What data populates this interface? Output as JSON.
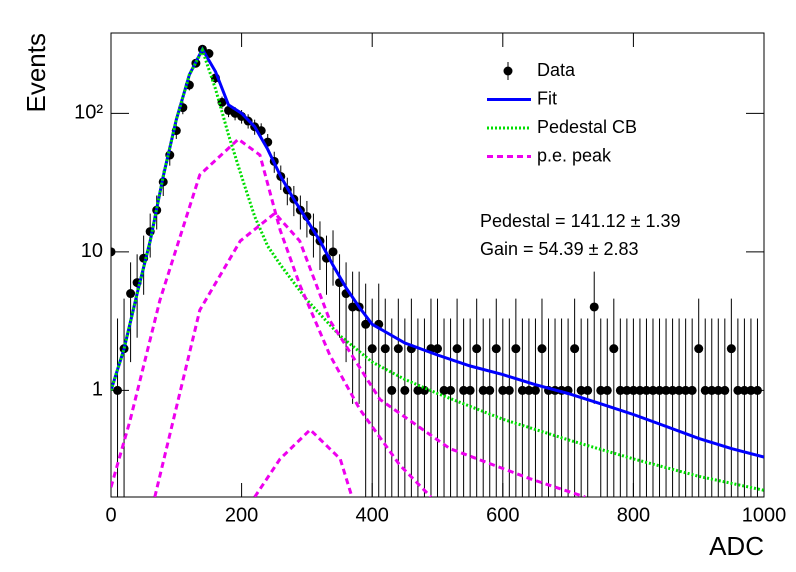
{
  "chart_data": {
    "type": "line",
    "xlabel": "ADC",
    "ylabel": "Events",
    "xlim": [
      0,
      1000
    ],
    "ylim": [
      0.17,
      380
    ],
    "log_y": true,
    "xticks": [
      0,
      200,
      400,
      600,
      800,
      1000
    ],
    "yticks": [
      1,
      10,
      {
        "value": 100,
        "label": "10²"
      }
    ],
    "legend": "upper right",
    "annotations": [
      "Pedestal = 141.12 ± 1.39",
      "Gain = 54.39 ± 2.83"
    ],
    "series": [
      {
        "name": "Data",
        "color": "#000000",
        "style": "points",
        "x": [
          0,
          10,
          20,
          30,
          40,
          50,
          60,
          70,
          80,
          90,
          100,
          110,
          120,
          130,
          140,
          150,
          160,
          170,
          180,
          190,
          200,
          210,
          220,
          230,
          240,
          250,
          260,
          270,
          280,
          290,
          300,
          310,
          320,
          330,
          340,
          350,
          360,
          370,
          380,
          390,
          400,
          410,
          420,
          430,
          440,
          450,
          460,
          470,
          480,
          490,
          500,
          510,
          520,
          530,
          540,
          550,
          560,
          570,
          580,
          590,
          600,
          610,
          620,
          630,
          640,
          650,
          660,
          670,
          680,
          690,
          700,
          710,
          720,
          730,
          740,
          750,
          760,
          770,
          780,
          790,
          800,
          810,
          820,
          830,
          840,
          850,
          860,
          870,
          880,
          890,
          900,
          910,
          920,
          930,
          940,
          950,
          960,
          970,
          980,
          990
        ],
        "values": [
          10,
          1,
          2,
          5,
          6,
          9,
          14,
          20,
          32,
          50,
          75,
          110,
          160,
          230,
          290,
          270,
          180,
          120,
          105,
          100,
          95,
          88,
          80,
          75,
          62,
          45,
          35,
          28,
          24,
          20,
          18,
          14,
          12,
          9,
          10,
          6,
          5,
          4,
          4,
          3,
          2,
          3,
          2,
          1,
          2,
          1,
          2,
          1,
          1,
          2,
          2,
          1,
          1,
          2,
          1,
          1,
          2,
          1,
          1,
          2,
          1,
          1,
          2,
          1,
          1,
          1,
          2,
          1,
          1,
          1,
          1,
          2,
          1,
          1,
          4,
          1,
          1,
          2,
          1,
          1,
          1,
          1,
          1,
          1,
          1,
          1,
          1,
          1,
          1,
          1,
          2,
          1,
          1,
          1,
          1,
          2,
          1,
          1,
          1,
          1
        ],
        "errors": [
          4.3,
          2.3,
          2.6,
          3.4,
          3.6,
          4.1,
          4.9,
          5.5,
          6.7,
          8.1,
          9.7,
          11.5,
          13.6,
          16.2,
          18,
          17.4,
          14.4,
          12,
          11.2,
          11,
          10.7,
          10.4,
          10,
          9.7,
          8.9,
          7.8,
          7,
          6.3,
          5.9,
          5.5,
          5.3,
          4.9,
          4.6,
          4.1,
          4.3,
          3.6,
          3.4,
          3.2,
          3.2,
          2.9,
          2.6,
          2.9,
          2.6,
          2.3,
          2.6,
          2.3,
          2.6,
          2.3,
          2.3,
          2.6,
          2.6,
          2.3,
          2.3,
          2.6,
          2.3,
          2.3,
          2.6,
          2.3,
          2.3,
          2.6,
          2.3,
          2.3,
          2.6,
          2.3,
          2.3,
          2.3,
          2.6,
          2.3,
          2.3,
          2.3,
          2.3,
          2.6,
          2.3,
          2.3,
          3.2,
          2.3,
          2.3,
          2.6,
          2.3,
          2.3,
          2.3,
          2.3,
          2.3,
          2.3,
          2.3,
          2.3,
          2.3,
          2.3,
          2.3,
          2.3,
          2.6,
          2.3,
          2.3,
          2.3,
          2.3,
          2.6,
          2.3,
          2.3,
          2.3,
          2.3
        ]
      },
      {
        "name": "Fit",
        "color": "#0000ff",
        "style": "solid",
        "x": [
          0,
          20,
          40,
          60,
          80,
          100,
          120,
          140,
          160,
          180,
          200,
          220,
          240,
          260,
          280,
          300,
          320,
          340,
          360,
          380,
          400,
          450,
          500,
          550,
          600,
          650,
          700,
          750,
          800,
          850,
          900,
          950,
          1000
        ],
        "values": [
          1,
          2,
          5,
          12,
          35,
          90,
          190,
          290,
          200,
          115,
          100,
          80,
          55,
          35,
          24,
          17,
          12,
          8,
          5.5,
          4,
          3,
          2.2,
          1.8,
          1.5,
          1.3,
          1.1,
          0.95,
          0.8,
          0.67,
          0.55,
          0.45,
          0.38,
          0.33
        ]
      },
      {
        "name": "Pedestal CB",
        "color": "#00dd00",
        "style": "dotted",
        "x": [
          0,
          20,
          40,
          60,
          80,
          100,
          120,
          140,
          160,
          180,
          200,
          220,
          240,
          260,
          280,
          300,
          350,
          400,
          450,
          500,
          600,
          700,
          800,
          900,
          1000
        ],
        "values": [
          1,
          2,
          5,
          12,
          35,
          90,
          190,
          285,
          150,
          70,
          35,
          18,
          11,
          8,
          6,
          4.5,
          2.5,
          1.6,
          1.2,
          0.95,
          0.62,
          0.44,
          0.32,
          0.24,
          0.19
        ]
      },
      {
        "name": "p.e. peak",
        "color": "#ee00ee",
        "style": "dashed",
        "x": [
          0,
          29,
          75,
          136,
          195,
          228,
          259,
          289,
          335,
          381,
          442,
          490,
          null,
          67,
          136,
          198,
          251,
          289,
          335,
          412,
          519,
          642,
          726,
          null,
          220,
          259,
          305,
          351,
          369
        ],
        "values": [
          0.2,
          0.6,
          4.5,
          36,
          65,
          50,
          14.4,
          5.8,
          1.8,
          0.73,
          0.29,
          0.17,
          null,
          0.17,
          3.8,
          12,
          19,
          12,
          3.2,
          0.86,
          0.38,
          0.23,
          0.17,
          null,
          0.17,
          0.32,
          0.52,
          0.32,
          0.17
        ]
      }
    ]
  }
}
